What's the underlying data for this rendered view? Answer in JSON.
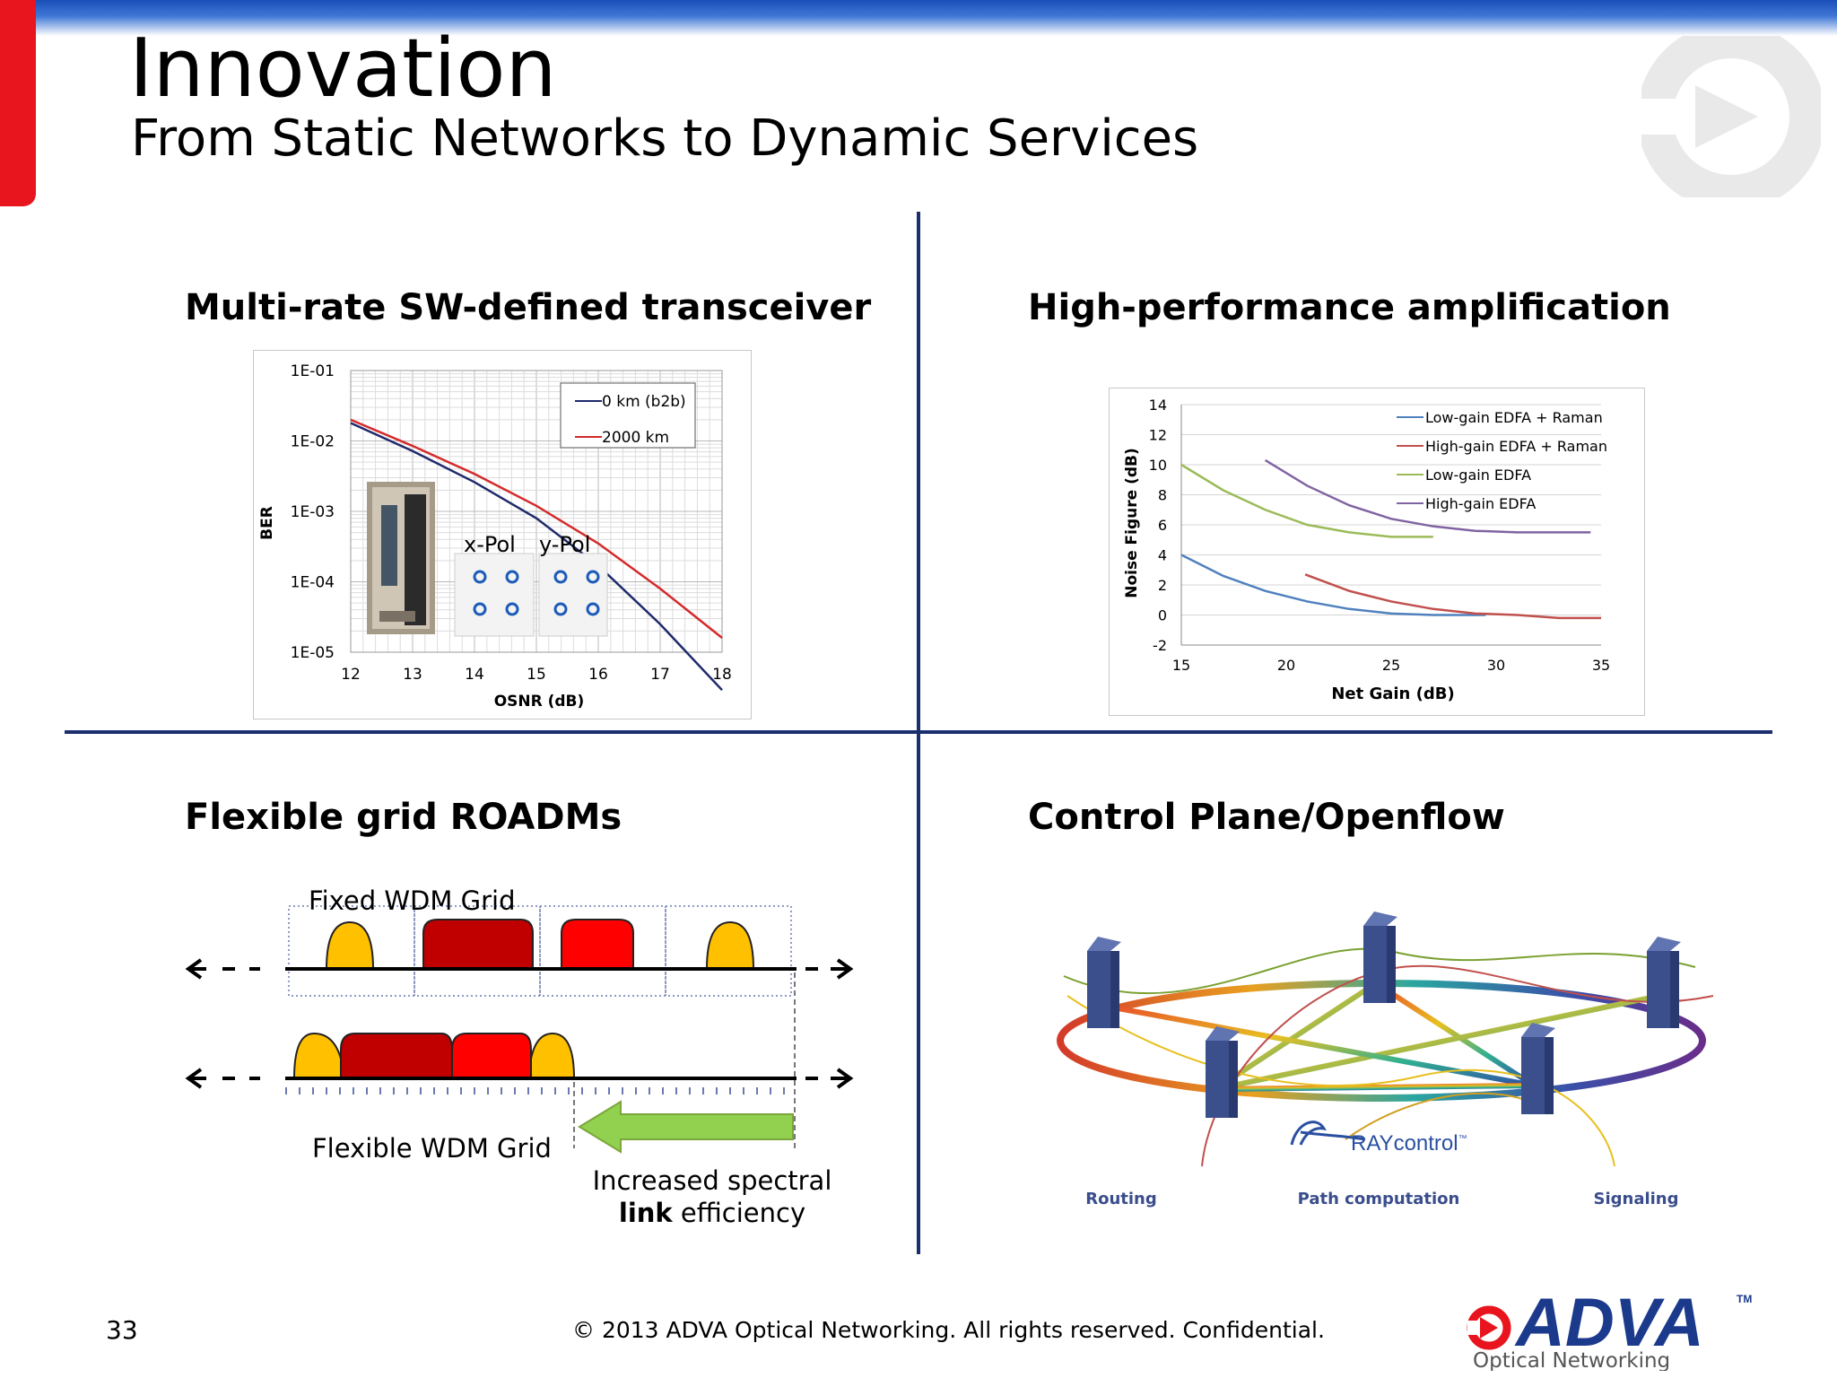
{
  "header": {
    "title": "Innovation",
    "subtitle": "From Static Networks to Dynamic Services"
  },
  "quadrants": {
    "transceiver_title": "Multi-rate SW-defined transceiver",
    "amplification_title": "High-performance amplification",
    "roadm_title": "Flexible grid ROADMs",
    "control_title": "Control Plane/Openflow"
  },
  "colors": {
    "brand_blue": "#1b3a8c",
    "accent_red": "#e8141e",
    "divider": "#1b2f6e"
  },
  "chart_data": [
    {
      "type": "line",
      "title": "",
      "xlabel": "OSNR (dB)",
      "ylabel": "BER",
      "xlim": [
        12,
        18
      ],
      "ylim_log10": [
        -5,
        -1
      ],
      "yscale": "log",
      "grid": true,
      "legend_position": "top-right",
      "x_ticks": [
        "12",
        "13",
        "14",
        "15",
        "16",
        "17",
        "18"
      ],
      "y_ticks": [
        "1E-01",
        "1E-02",
        "1E-03",
        "1E-04",
        "1E-05"
      ],
      "series": [
        {
          "name": "0 km (b2b)",
          "color": "#1f2a6b",
          "x": [
            12,
            13,
            14,
            15,
            16,
            17,
            18
          ],
          "y": [
            0.018,
            0.0072,
            0.0026,
            0.0008,
            0.00017,
            2.5e-05,
            2.9e-06
          ]
        },
        {
          "name": "2000 km",
          "color": "#d42a2a",
          "x": [
            12,
            13,
            14,
            15,
            16,
            17,
            18
          ],
          "y": [
            0.02,
            0.0085,
            0.0034,
            0.0012,
            0.00035,
            8e-05,
            1.6e-05
          ]
        }
      ],
      "annotations": [
        "x-Pol",
        "y-Pol"
      ]
    },
    {
      "type": "line",
      "title": "",
      "xlabel": "Net Gain (dB)",
      "ylabel": "Noise Figure (dB)",
      "xlim": [
        15,
        35
      ],
      "ylim": [
        -2,
        14
      ],
      "grid": true,
      "legend_position": "top-right",
      "x_ticks": [
        "15",
        "20",
        "25",
        "30",
        "35"
      ],
      "y_ticks": [
        "14",
        "12",
        "10",
        "8",
        "6",
        "4",
        "2",
        "0",
        "-2"
      ],
      "series": [
        {
          "name": "Low-gain EDFA + Raman",
          "color": "#4f81bd",
          "x": [
            15,
            17,
            19,
            21,
            23,
            25,
            27,
            29.5
          ],
          "y": [
            4.0,
            2.6,
            1.6,
            0.9,
            0.4,
            0.1,
            0.0,
            0.0
          ]
        },
        {
          "name": "High-gain EDFA + Raman",
          "color": "#c0504d",
          "x": [
            20.9,
            23,
            25,
            27,
            29,
            31,
            33,
            35
          ],
          "y": [
            2.7,
            1.6,
            0.9,
            0.4,
            0.1,
            0.0,
            -0.2,
            -0.2
          ]
        },
        {
          "name": "Low-gain EDFA",
          "color": "#9bbb59",
          "x": [
            15,
            17,
            19,
            21,
            23,
            25,
            27
          ],
          "y": [
            10.0,
            8.3,
            7.0,
            6.0,
            5.5,
            5.2,
            5.2
          ]
        },
        {
          "name": "High-gain EDFA",
          "color": "#8064a2",
          "x": [
            19,
            21,
            23,
            25,
            27,
            29,
            31,
            33,
            34.5
          ],
          "y": [
            10.3,
            8.6,
            7.3,
            6.4,
            5.9,
            5.6,
            5.5,
            5.5,
            5.5
          ]
        }
      ]
    }
  ],
  "roadm": {
    "fixed_label": "Fixed WDM Grid",
    "flexible_label": "Flexible WDM Grid",
    "efficiency_line1": "Increased spectral",
    "efficiency_bold": "link",
    "efficiency_rest": " efficiency"
  },
  "control_plane": {
    "brand": "RAYcontrol",
    "trademark": "™",
    "labels": [
      "Routing",
      "Path computation",
      "Signaling"
    ]
  },
  "footer": {
    "page_number": "33",
    "copyright": "© 2013 ADVA Optical Networking. All rights reserved. Confidential.",
    "logo_text": "ADVA",
    "logo_tm": "TM",
    "logo_sub": "Optical Networking"
  }
}
